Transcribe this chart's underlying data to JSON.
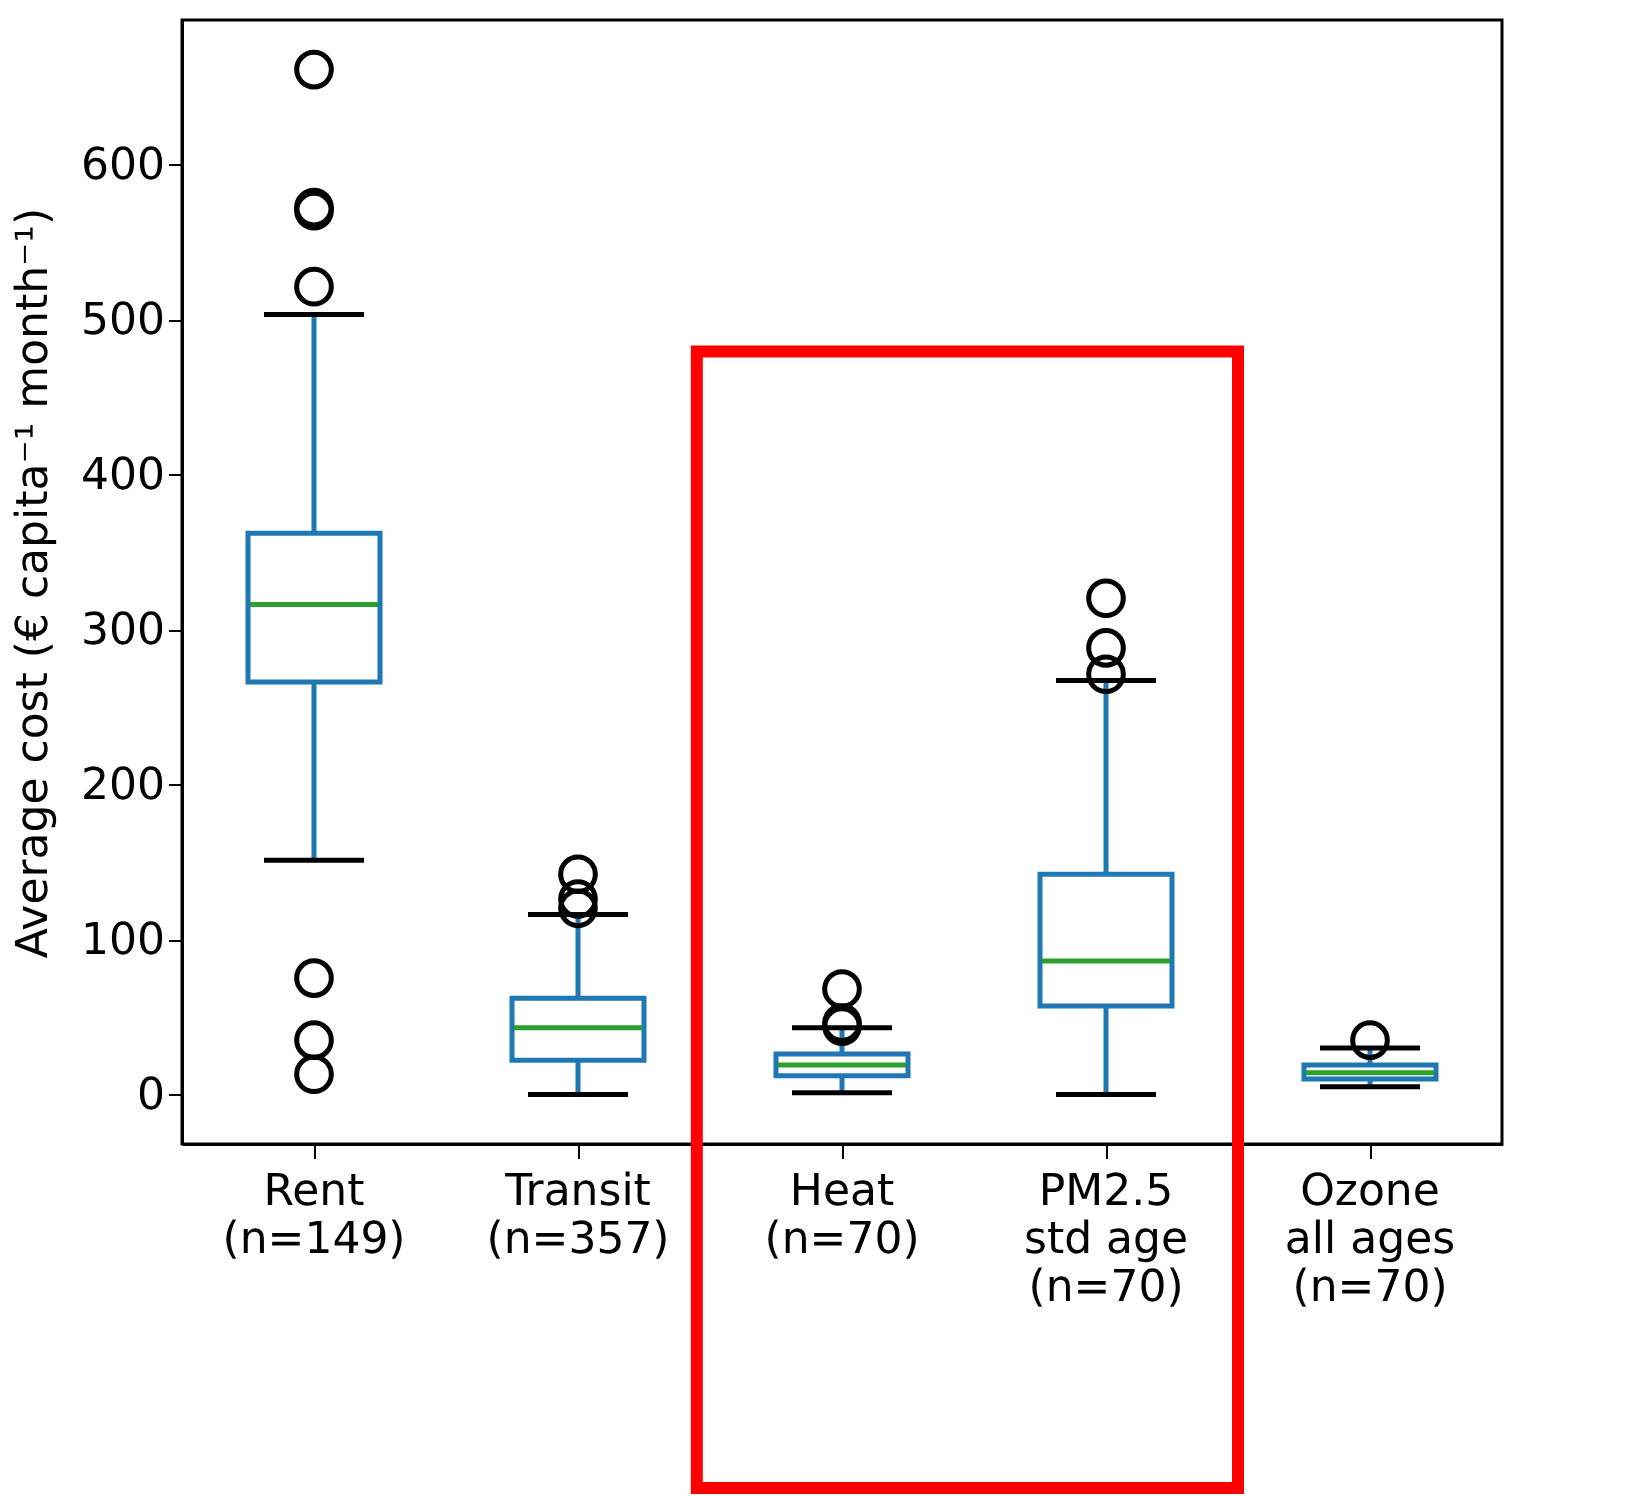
{
  "chart_data": {
    "type": "box",
    "ylabel": "Average cost (€ capita⁻¹ month⁻¹)",
    "categories": [
      "Rent\n(n=149)",
      "Transit\n(n=357)",
      "Heat\n(n=70)",
      "PM2.5\nstd age\n(n=70)",
      "Ozone\nall ages\n(n=70)"
    ],
    "series": [
      {
        "color": "#1f77b4",
        "boxes": [
          {
            "low": 151,
            "q1": 266,
            "median": 316,
            "q3": 362,
            "high": 503,
            "outliers": [
              661,
              572,
              570,
              521,
              75,
              35,
              13
            ]
          },
          {
            "low": 0,
            "q1": 22,
            "median": 43,
            "q3": 62,
            "high": 116,
            "outliers": [
              142,
              126,
              120
            ]
          },
          {
            "low": 1,
            "q1": 12,
            "median": 19,
            "q3": 26,
            "high": 43,
            "outliers": [
              68,
              46,
              44
            ]
          },
          {
            "low": 0,
            "q1": 57,
            "median": 86,
            "q3": 142,
            "high": 267,
            "outliers": [
              320,
              288,
              271
            ]
          },
          {
            "low": 5,
            "q1": 10,
            "median": 14,
            "q3": 19,
            "high": 30,
            "outliers": [
              35
            ]
          }
        ]
      }
    ],
    "ylim": [
      -32,
      693
    ],
    "yticks": [
      0,
      100,
      200,
      300,
      400,
      500,
      600
    ],
    "grid": false
  }
}
